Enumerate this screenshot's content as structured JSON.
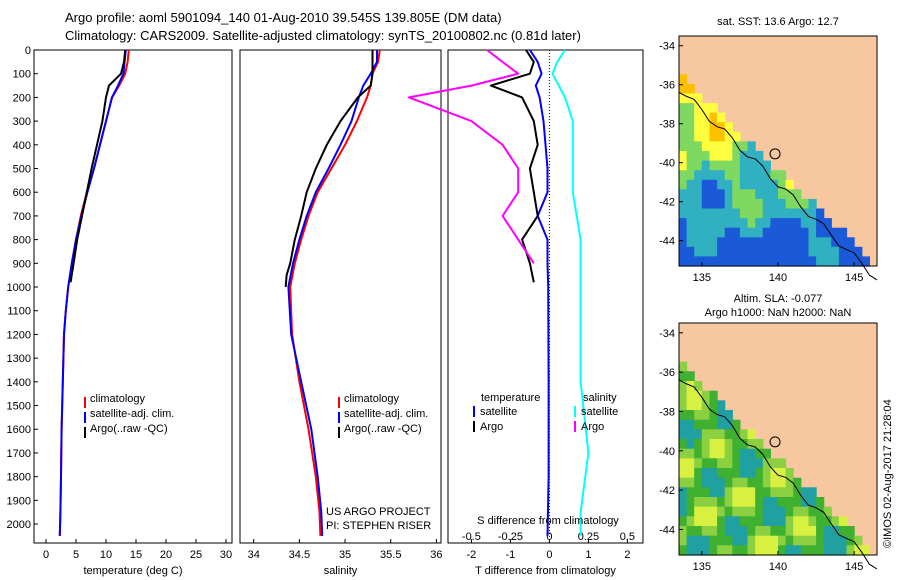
{
  "header": {
    "title_line1": "Argo profile: aoml 5901094_140 01-Aug-2010 39.545S 139.805E (DM data)",
    "title_line2": "Climatology: CARS2009. Satellite-adjusted climatology: synTS_20100802.nc (0.81d later)"
  },
  "colors": {
    "climatology": "#ff0000",
    "satellite": "#0000ff",
    "argo": "#000000",
    "salinity_satellite": "#00ffff",
    "salinity_argo": "#ff00ff",
    "land": "#f7c8a0"
  },
  "chart_data": [
    {
      "type": "line",
      "id": "temperature",
      "xlabel": "temperature (deg C)",
      "xlim": [
        -2,
        31
      ],
      "ylim": [
        2080,
        0
      ],
      "xticks": [
        0,
        5,
        10,
        15,
        20,
        25,
        30
      ],
      "yticks": [
        0,
        100,
        200,
        300,
        400,
        500,
        600,
        700,
        800,
        900,
        1000,
        1100,
        1200,
        1300,
        1400,
        1500,
        1600,
        1700,
        1800,
        1900,
        2000
      ],
      "legend": [
        "climatology",
        "satellite-adj. clim.",
        "Argo(..raw -QC)"
      ],
      "series": [
        {
          "name": "climatology",
          "color": "#ff0000",
          "x": [
            13.8,
            13.6,
            13.2,
            12.2,
            11.0,
            10.0,
            9.0,
            8.0,
            6.8,
            5.8,
            5.0,
            4.3,
            3.7,
            3.3,
            3.0,
            2.8,
            2.6,
            2.5,
            2.4,
            2.3
          ],
          "y": [
            0,
            50,
            100,
            150,
            200,
            300,
            400,
            500,
            600,
            700,
            800,
            900,
            1000,
            1100,
            1200,
            1400,
            1600,
            1800,
            1950,
            2050
          ]
        },
        {
          "name": "satellite-adj. clim.",
          "color": "#0000ff",
          "x": [
            13.3,
            13.1,
            12.9,
            12.0,
            11.0,
            10.0,
            9.0,
            8.0,
            6.9,
            5.9,
            5.0,
            4.3,
            3.7,
            3.3,
            3.0,
            2.8,
            2.6,
            2.5,
            2.4,
            2.3
          ],
          "y": [
            0,
            50,
            100,
            150,
            200,
            300,
            400,
            500,
            600,
            700,
            800,
            900,
            1000,
            1100,
            1200,
            1400,
            1600,
            1800,
            1950,
            2050
          ]
        },
        {
          "name": "Argo(..raw -QC)",
          "color": "#000000",
          "x": [
            13.2,
            13.0,
            12.5,
            10.5,
            10.0,
            9.4,
            8.5,
            7.6,
            6.8,
            6.0,
            5.2,
            4.6,
            4.1
          ],
          "y": [
            0,
            50,
            100,
            150,
            200,
            300,
            400,
            500,
            600,
            700,
            800,
            900,
            980
          ]
        }
      ]
    },
    {
      "type": "line",
      "id": "salinity",
      "xlabel": "salinity",
      "xlim": [
        33.85,
        36.05
      ],
      "ylim": [
        2080,
        0
      ],
      "xticks": [
        34,
        34.5,
        35,
        35.5,
        36
      ],
      "xtick_labels": [
        "34",
        "34.5",
        "35",
        "35.5",
        "36"
      ],
      "legend": [
        "climatology",
        "satellite-adj. clim.",
        "Argo(..raw -QC)"
      ],
      "annotation_line1": "US ARGO PROJECT",
      "annotation_line2": "PI: STEPHEN RISER",
      "series": [
        {
          "name": "climatology",
          "color": "#ff0000",
          "x": [
            35.38,
            35.36,
            35.3,
            35.28,
            35.24,
            35.13,
            35.0,
            34.85,
            34.7,
            34.6,
            34.52,
            34.45,
            34.4,
            34.42,
            34.5,
            34.6,
            34.68,
            34.72,
            34.73
          ],
          "y": [
            0,
            50,
            100,
            150,
            200,
            300,
            400,
            500,
            600,
            700,
            800,
            900,
            1000,
            1200,
            1400,
            1600,
            1800,
            1950,
            2050
          ]
        },
        {
          "name": "satellite-adj. clim.",
          "color": "#0000ff",
          "x": [
            35.35,
            35.35,
            35.28,
            35.2,
            35.15,
            35.07,
            34.95,
            34.82,
            34.68,
            34.58,
            34.5,
            34.43,
            34.38,
            34.41,
            34.52,
            34.63,
            34.7,
            34.74,
            34.75
          ],
          "y": [
            0,
            50,
            100,
            150,
            200,
            300,
            400,
            500,
            600,
            700,
            800,
            900,
            1000,
            1200,
            1400,
            1600,
            1800,
            1950,
            2050
          ]
        },
        {
          "name": "Argo(..raw -QC)",
          "color": "#000000",
          "x": [
            35.3,
            35.3,
            35.28,
            35.14,
            34.95,
            34.8,
            34.68,
            34.58,
            34.52,
            34.45,
            34.4,
            34.36,
            34.35
          ],
          "y": [
            0,
            100,
            150,
            200,
            300,
            400,
            500,
            600,
            700,
            800,
            900,
            950,
            1000
          ]
        }
      ]
    },
    {
      "type": "line",
      "id": "difference",
      "xlabel": "T difference from climatology",
      "xlabel_top": "S difference from climatology",
      "xlim": [
        -2.6,
        2.4
      ],
      "ylim": [
        2080,
        0
      ],
      "xticks": [
        -2,
        -1,
        0,
        1,
        2
      ],
      "s_ticks": [
        -0.5,
        -0.25,
        0,
        0.25,
        0.5
      ],
      "s_tick_labels": [
        "-0.5",
        "-0.25",
        "0",
        "0.25",
        "0.5"
      ],
      "legend_temperature": "temperature",
      "legend_salinity": "salinity",
      "legend_satellite": "satellite",
      "legend_argo": "Argo",
      "series": [
        {
          "name": "T satellite",
          "color": "#0000ff",
          "x": [
            -0.5,
            -0.3,
            -0.2,
            -0.35,
            -0.25,
            -0.15,
            -0.1,
            -0.05,
            -0.05,
            -0.3,
            -0.05,
            -0.05,
            -0.03,
            -0.02,
            -0.02,
            -0.05
          ],
          "y": [
            0,
            50,
            100,
            150,
            200,
            300,
            400,
            500,
            600,
            700,
            800,
            900,
            1000,
            1400,
            1800,
            2050
          ]
        },
        {
          "name": "T Argo",
          "color": "#000000",
          "x": [
            -0.6,
            -0.4,
            -0.5,
            -1.5,
            -0.7,
            -0.4,
            -0.3,
            -0.5,
            -0.4,
            -0.3,
            -0.7,
            -0.5,
            -0.4
          ],
          "y": [
            0,
            50,
            100,
            150,
            200,
            300,
            400,
            500,
            600,
            700,
            800,
            900,
            980
          ]
        },
        {
          "name": "S satellite",
          "color": "#00ffff",
          "x": [
            0.1,
            0.05,
            0.02,
            0.1,
            0.15,
            0.15,
            0.15,
            0.2,
            0.2,
            0.2,
            0.25,
            0.2,
            0.2
          ],
          "y": [
            0,
            50,
            100,
            200,
            300,
            400,
            600,
            800,
            1000,
            1400,
            1700,
            1950,
            2050
          ]
        },
        {
          "name": "S Argo",
          "color": "#ff00ff",
          "x": [
            -0.4,
            -0.3,
            -0.2,
            -0.5,
            -0.9,
            -0.5,
            -0.3,
            -0.2,
            -0.2,
            -0.3,
            -0.2,
            -0.1
          ],
          "y": [
            0,
            50,
            100,
            150,
            200,
            300,
            400,
            500,
            600,
            700,
            800,
            900
          ]
        }
      ]
    },
    {
      "type": "heatmap",
      "id": "sst-map",
      "title": "sat. SST: 13.6 Argo: 12.7",
      "xlim": [
        133.5,
        146.5
      ],
      "ylim": [
        -45.3,
        -33.5
      ],
      "xticks": [
        135,
        140,
        145
      ],
      "yticks": [
        -34,
        -36,
        -38,
        -40,
        -42,
        -44
      ],
      "argo_position": {
        "lon": 139.805,
        "lat": -39.545
      }
    },
    {
      "type": "heatmap",
      "id": "sla-map",
      "title_line1": "Altim. SLA: -0.077",
      "title_line2": "Argo h1000: NaN h2000: NaN",
      "xlim": [
        133.5,
        146.5
      ],
      "ylim": [
        -45.3,
        -33.5
      ],
      "xticks": [
        135,
        140,
        145
      ],
      "yticks": [
        -34,
        -36,
        -38,
        -40,
        -42,
        -44
      ],
      "argo_position": {
        "lon": 139.805,
        "lat": -39.545
      }
    }
  ],
  "footer": {
    "credit": "©IMOS 02-Aug-2017 21:28:04"
  }
}
